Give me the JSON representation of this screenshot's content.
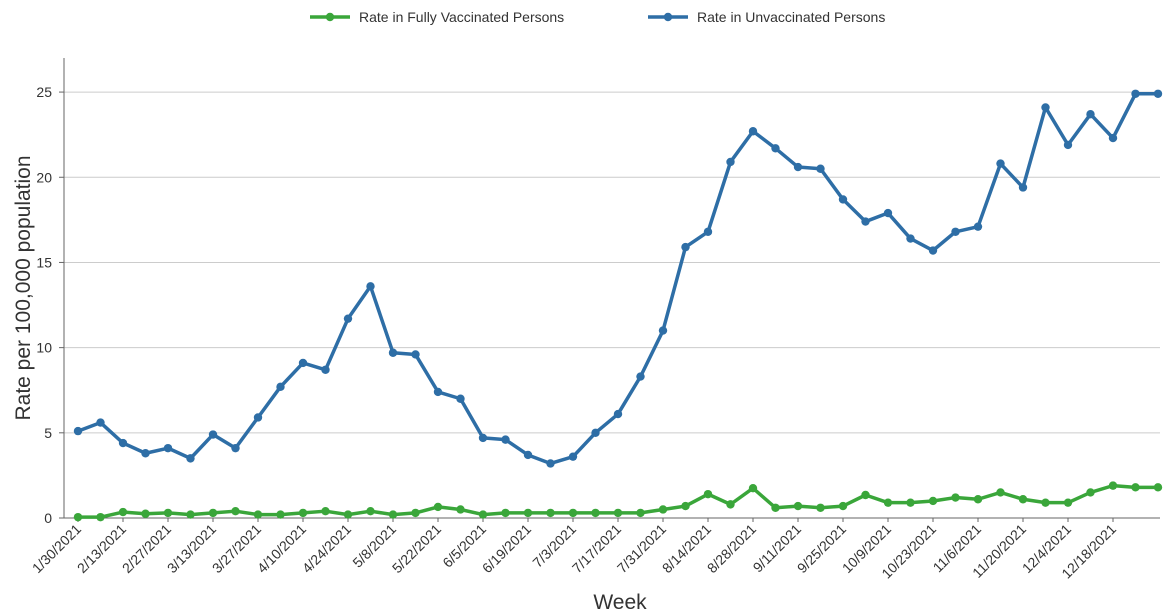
{
  "chart_data": {
    "type": "line",
    "xlabel": "Week",
    "ylabel": "Rate per 100,000 population",
    "ylim": [
      0,
      27
    ],
    "yticks": [
      0,
      5,
      10,
      15,
      20,
      25
    ],
    "grid": true,
    "legend_position": "top-center",
    "x": [
      "1/30/2021",
      "2/6/2021",
      "2/13/2021",
      "2/20/2021",
      "2/27/2021",
      "3/6/2021",
      "3/13/2021",
      "3/20/2021",
      "3/27/2021",
      "4/3/2021",
      "4/10/2021",
      "4/17/2021",
      "4/24/2021",
      "5/1/2021",
      "5/8/2021",
      "5/15/2021",
      "5/22/2021",
      "5/29/2021",
      "6/5/2021",
      "6/12/2021",
      "6/19/2021",
      "6/26/2021",
      "7/3/2021",
      "7/10/2021",
      "7/17/2021",
      "7/24/2021",
      "7/31/2021",
      "8/7/2021",
      "8/14/2021",
      "8/21/2021",
      "8/28/2021",
      "9/4/2021",
      "9/11/2021",
      "9/18/2021",
      "9/25/2021",
      "10/2/2021",
      "10/9/2021",
      "10/16/2021",
      "10/23/2021",
      "10/30/2021",
      "11/6/2021",
      "11/13/2021",
      "11/20/2021",
      "11/27/2021",
      "12/4/2021",
      "12/11/2021",
      "12/18/2021",
      "12/25/2021",
      "1/1/2022"
    ],
    "xtick_labels": [
      "1/30/2021",
      "2/13/2021",
      "2/27/2021",
      "3/13/2021",
      "3/27/2021",
      "4/10/2021",
      "4/24/2021",
      "5/8/2021",
      "5/22/2021",
      "6/5/2021",
      "6/19/2021",
      "7/3/2021",
      "7/17/2021",
      "7/31/2021",
      "8/14/2021",
      "8/28/2021",
      "9/11/2021",
      "9/25/2021",
      "10/9/2021",
      "10/23/2021",
      "11/6/2021",
      "11/20/2021",
      "12/4/2021",
      "12/18/2021"
    ],
    "series": [
      {
        "name": "Rate in Fully Vaccinated Persons",
        "color": "#3aa63a",
        "values": [
          0.05,
          0.05,
          0.35,
          0.25,
          0.3,
          0.2,
          0.3,
          0.4,
          0.2,
          0.2,
          0.3,
          0.4,
          0.2,
          0.4,
          0.2,
          0.3,
          0.65,
          0.5,
          0.2,
          0.3,
          0.3,
          0.3,
          0.3,
          0.3,
          0.3,
          0.3,
          0.5,
          0.7,
          1.4,
          0.8,
          1.75,
          0.6,
          0.7,
          0.6,
          0.7,
          1.35,
          0.9,
          0.9,
          1.0,
          1.2,
          1.1,
          1.5,
          1.1,
          0.9,
          0.9,
          1.5,
          1.9,
          1.8,
          1.8
        ]
      },
      {
        "name": "Rate in Unvaccinated Persons",
        "color": "#2e6ea6",
        "values": [
          5.1,
          5.6,
          4.4,
          3.8,
          4.1,
          3.5,
          4.9,
          4.1,
          5.9,
          7.7,
          9.1,
          8.7,
          11.7,
          13.6,
          9.7,
          9.6,
          7.4,
          7.0,
          4.7,
          4.6,
          3.7,
          3.2,
          3.6,
          5.0,
          6.1,
          8.3,
          11.0,
          15.9,
          16.8,
          20.9,
          22.7,
          21.7,
          20.6,
          20.5,
          18.7,
          17.4,
          17.9,
          16.4,
          15.7,
          16.8,
          17.1,
          20.8,
          19.4,
          24.1,
          21.9,
          23.7,
          22.3,
          24.9,
          24.9
        ]
      }
    ]
  }
}
